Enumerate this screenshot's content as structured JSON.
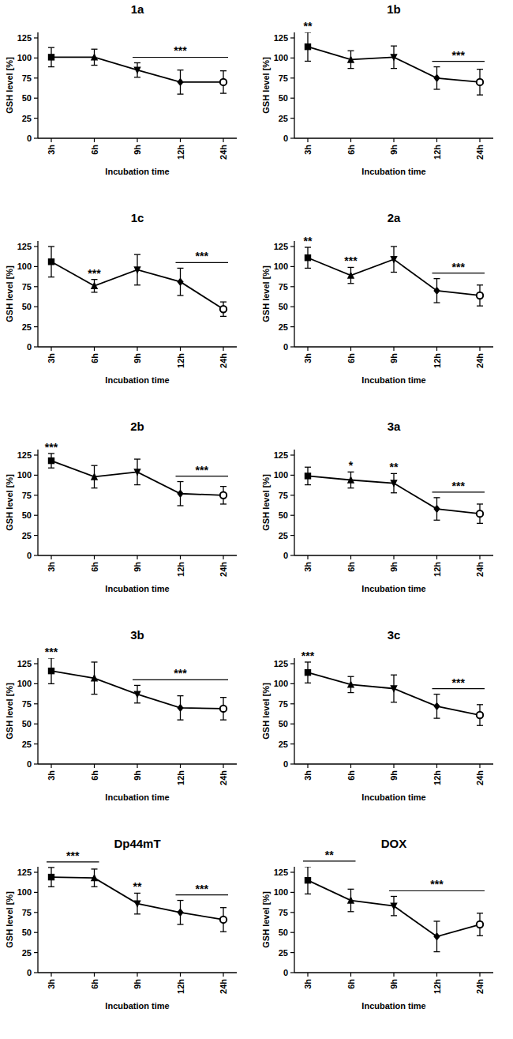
{
  "chart_data": [
    {
      "type": "line",
      "title": "1a",
      "x_label": "Incubation time",
      "y_label": "GSH level [%]",
      "categories": [
        "3h",
        "6h",
        "9h",
        "12h",
        "24h"
      ],
      "series": [
        {
          "color": "#000000",
          "values": [
            101,
            101,
            85,
            70,
            70
          ],
          "errors": [
            12,
            10,
            9,
            15,
            14
          ]
        }
      ],
      "ylim": [
        0,
        132
      ],
      "yticks": [
        0,
        25,
        50,
        75,
        100,
        125
      ],
      "annotations": [
        {
          "text": "***",
          "from": "9h",
          "to": "24h"
        }
      ]
    },
    {
      "type": "line",
      "title": "1b",
      "x_label": "Incubation time",
      "y_label": "GSH level [%]",
      "categories": [
        "3h",
        "6h",
        "9h",
        "12h",
        "24h"
      ],
      "series": [
        {
          "color": "#000000",
          "values": [
            114,
            98,
            101,
            75,
            70
          ],
          "errors": [
            18,
            11,
            14,
            14,
            16
          ]
        }
      ],
      "ylim": [
        0,
        132
      ],
      "yticks": [
        0,
        25,
        50,
        75,
        100,
        125
      ],
      "annotations": [
        {
          "text": "**",
          "from": "3h",
          "to": "3h"
        },
        {
          "text": "***",
          "from": "12h",
          "to": "24h"
        }
      ]
    },
    {
      "type": "line",
      "title": "1c",
      "x_label": "Incubation time",
      "y_label": "GSH level [%]",
      "categories": [
        "3h",
        "6h",
        "9h",
        "12h",
        "24h"
      ],
      "series": [
        {
          "color": "#000000",
          "values": [
            106,
            76,
            96,
            81,
            47
          ],
          "errors": [
            19,
            8,
            19,
            17,
            9
          ]
        }
      ],
      "ylim": [
        0,
        132
      ],
      "yticks": [
        0,
        25,
        50,
        75,
        100,
        125
      ],
      "annotations": [
        {
          "text": "***",
          "from": "6h",
          "to": "6h"
        },
        {
          "text": "***",
          "from": "12h",
          "to": "24h"
        }
      ]
    },
    {
      "type": "line",
      "title": "2a",
      "x_label": "Incubation time",
      "y_label": "GSH level [%]",
      "categories": [
        "3h",
        "6h",
        "9h",
        "12h",
        "24h"
      ],
      "series": [
        {
          "color": "#000000",
          "values": [
            111,
            89,
            109,
            70,
            64
          ],
          "errors": [
            13,
            10,
            16,
            15,
            13
          ]
        }
      ],
      "ylim": [
        0,
        132
      ],
      "yticks": [
        0,
        25,
        50,
        75,
        100,
        125
      ],
      "annotations": [
        {
          "text": "**",
          "from": "3h",
          "to": "3h"
        },
        {
          "text": "***",
          "from": "6h",
          "to": "6h"
        },
        {
          "text": "***",
          "from": "12h",
          "to": "24h"
        }
      ]
    },
    {
      "type": "line",
      "title": "2b",
      "x_label": "Incubation time",
      "y_label": "GSH level [%]",
      "categories": [
        "3h",
        "6h",
        "9h",
        "12h",
        "24h"
      ],
      "series": [
        {
          "color": "#000000",
          "values": [
            118,
            98,
            104,
            77,
            75
          ],
          "errors": [
            9,
            14,
            16,
            15,
            11
          ]
        }
      ],
      "ylim": [
        0,
        132
      ],
      "yticks": [
        0,
        25,
        50,
        75,
        100,
        125
      ],
      "annotations": [
        {
          "text": "***",
          "from": "3h",
          "to": "3h"
        },
        {
          "text": "***",
          "from": "12h",
          "to": "24h"
        }
      ]
    },
    {
      "type": "line",
      "title": "3a",
      "x_label": "Incubation time",
      "y_label": "GSH level [%]",
      "categories": [
        "3h",
        "6h",
        "9h",
        "12h",
        "24h"
      ],
      "series": [
        {
          "color": "#000000",
          "values": [
            99,
            94,
            90,
            58,
            52
          ],
          "errors": [
            11,
            10,
            12,
            14,
            12
          ]
        }
      ],
      "ylim": [
        0,
        132
      ],
      "yticks": [
        0,
        25,
        50,
        75,
        100,
        125
      ],
      "annotations": [
        {
          "text": "*",
          "from": "6h",
          "to": "6h"
        },
        {
          "text": "**",
          "from": "9h",
          "to": "9h"
        },
        {
          "text": "***",
          "from": "12h",
          "to": "24h"
        }
      ]
    },
    {
      "type": "line",
      "title": "3b",
      "x_label": "Incubation time",
      "y_label": "GSH level [%]",
      "categories": [
        "3h",
        "6h",
        "9h",
        "12h",
        "24h"
      ],
      "series": [
        {
          "color": "#000000",
          "values": [
            116,
            107,
            87,
            70,
            69
          ],
          "errors": [
            16,
            20,
            11,
            15,
            14
          ]
        }
      ],
      "ylim": [
        0,
        132
      ],
      "yticks": [
        0,
        25,
        50,
        75,
        100,
        125
      ],
      "annotations": [
        {
          "text": "***",
          "from": "3h",
          "to": "3h"
        },
        {
          "text": "***",
          "from": "9h",
          "to": "24h"
        }
      ]
    },
    {
      "type": "line",
      "title": "3c",
      "x_label": "Incubation time",
      "y_label": "GSH level [%]",
      "categories": [
        "3h",
        "6h",
        "9h",
        "12h",
        "24h"
      ],
      "series": [
        {
          "color": "#000000",
          "values": [
            114,
            99,
            94,
            72,
            61
          ],
          "errors": [
            13,
            10,
            17,
            15,
            13
          ]
        }
      ],
      "ylim": [
        0,
        132
      ],
      "yticks": [
        0,
        25,
        50,
        75,
        100,
        125
      ],
      "annotations": [
        {
          "text": "***",
          "from": "3h",
          "to": "3h"
        },
        {
          "text": "***",
          "from": "12h",
          "to": "24h"
        }
      ]
    },
    {
      "type": "line",
      "title": "Dp44mT",
      "x_label": "Incubation time",
      "y_label": "GSH level [%]",
      "categories": [
        "3h",
        "6h",
        "9h",
        "12h",
        "24h"
      ],
      "series": [
        {
          "color": "#000000",
          "values": [
            119,
            118,
            86,
            75,
            66
          ],
          "errors": [
            12,
            11,
            13,
            15,
            15
          ]
        }
      ],
      "ylim": [
        0,
        132
      ],
      "yticks": [
        0,
        25,
        50,
        75,
        100,
        125
      ],
      "annotations": [
        {
          "text": "***",
          "from": "3h",
          "to": "6h"
        },
        {
          "text": "**",
          "from": "9h",
          "to": "9h"
        },
        {
          "text": "***",
          "from": "12h",
          "to": "24h"
        }
      ]
    },
    {
      "type": "line",
      "title": "DOX",
      "x_label": "Incubation time",
      "y_label": "GSH level [%]",
      "categories": [
        "3h",
        "6h",
        "9h",
        "12h",
        "24h"
      ],
      "series": [
        {
          "color": "#000000",
          "values": [
            115,
            90,
            83,
            45,
            60
          ],
          "errors": [
            17,
            14,
            12,
            19,
            14
          ]
        }
      ],
      "ylim": [
        0,
        132
      ],
      "yticks": [
        0,
        25,
        50,
        75,
        100,
        125
      ],
      "annotations": [
        {
          "text": "**",
          "from": "3h",
          "to": "6h"
        },
        {
          "text": "***",
          "from": "9h",
          "to": "24h"
        }
      ]
    }
  ]
}
